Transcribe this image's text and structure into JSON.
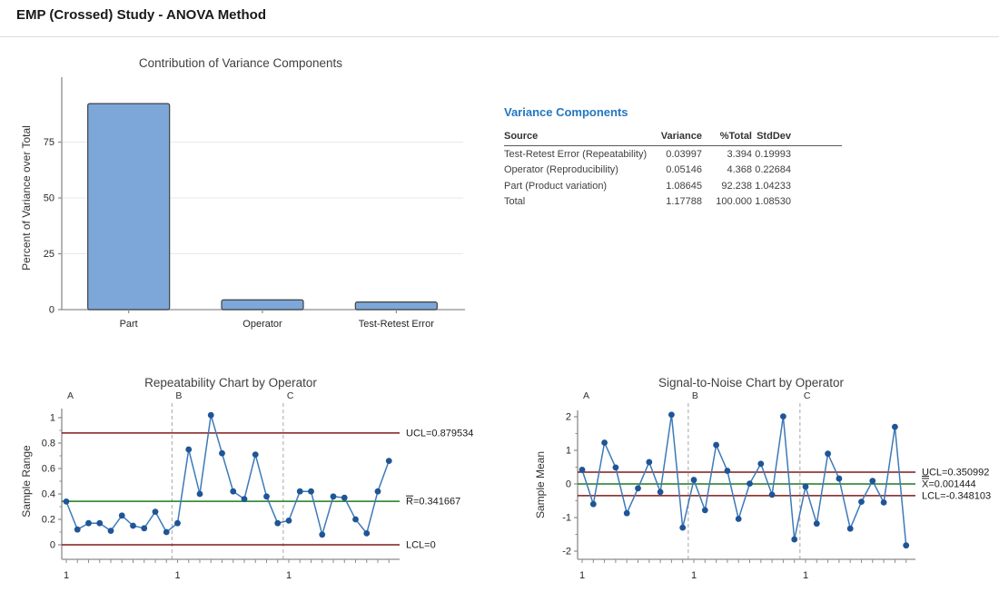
{
  "page": {
    "title": "EMP (Crossed) Study - ANOVA Method"
  },
  "variance_table": {
    "heading": "Variance Components",
    "columns": [
      "Source",
      "Variance",
      "%Total",
      "StdDev"
    ],
    "rows": [
      {
        "source": "Test-Retest Error (Repeatability)",
        "variance": "0.03997",
        "pct_total": "3.394",
        "stddev": "0.19993"
      },
      {
        "source": "Operator (Reproducibility)",
        "variance": "0.05146",
        "pct_total": "4.368",
        "stddev": "0.22684"
      },
      {
        "source": "Part (Product variation)",
        "variance": "1.08645",
        "pct_total": "92.238",
        "stddev": "1.04233"
      },
      {
        "source": "Total",
        "variance": "1.17788",
        "pct_total": "100.000",
        "stddev": "1.08530"
      }
    ]
  },
  "chart_data": [
    {
      "type": "bar",
      "title": "Contribution of Variance Components",
      "xlabel": "",
      "ylabel": "Percent of Variance over Total",
      "categories": [
        "Part",
        "Operator",
        "Test-Retest Error"
      ],
      "values": [
        92.238,
        4.368,
        3.394
      ],
      "yticks": [
        0,
        25,
        50,
        75
      ],
      "ylim": [
        0,
        100
      ],
      "grid": true,
      "legend": "none"
    },
    {
      "type": "line",
      "subtype": "control-chart",
      "title": "Repeatability Chart by Operator",
      "ylabel": "Sample Range",
      "yticks": [
        0,
        0.2,
        0.4,
        0.6,
        0.8,
        1
      ],
      "minor_tick_step": 0.1,
      "x_start_tick_label": "1",
      "groups": [
        {
          "label": "A",
          "values": [
            0.34,
            0.12,
            0.17,
            0.17,
            0.11,
            0.23,
            0.15,
            0.13,
            0.26,
            0.1
          ]
        },
        {
          "label": "B",
          "values": [
            0.17,
            0.75,
            0.4,
            1.02,
            0.72,
            0.42,
            0.36,
            0.71,
            0.38,
            0.17
          ]
        },
        {
          "label": "C",
          "values": [
            0.19,
            0.42,
            0.42,
            0.08,
            0.38,
            0.37,
            0.2,
            0.09,
            0.42,
            0.66
          ]
        }
      ],
      "control_lines": [
        {
          "name": "UCL",
          "label": "UCL=0.879534",
          "value": 0.879534,
          "role": "limit",
          "overline_chars": 0
        },
        {
          "name": "R-bar",
          "label": "R=0.341667",
          "value": 0.341667,
          "role": "center",
          "overline_chars": 1
        },
        {
          "name": "LCL",
          "label": "LCL=0",
          "value": 0,
          "role": "limit",
          "overline_chars": 0
        }
      ]
    },
    {
      "type": "line",
      "subtype": "control-chart",
      "title": "Signal-to-Noise Chart by Operator",
      "ylabel": "Sample Mean",
      "yticks": [
        -2,
        -1,
        0,
        1,
        2
      ],
      "minor_tick_step": 0.5,
      "x_start_tick_label": "1",
      "groups": [
        {
          "label": "A",
          "values": [
            0.42,
            -0.6,
            1.23,
            0.49,
            -0.87,
            -0.13,
            0.65,
            -0.24,
            2.06,
            -1.3
          ]
        },
        {
          "label": "B",
          "values": [
            0.12,
            -0.78,
            1.16,
            0.39,
            -1.04,
            0.01,
            0.6,
            -0.32,
            2.01,
            -1.65
          ]
        },
        {
          "label": "C",
          "values": [
            -0.08,
            -1.18,
            0.9,
            0.16,
            -1.33,
            -0.53,
            0.09,
            -0.55,
            1.7,
            -1.83
          ]
        }
      ],
      "control_lines": [
        {
          "name": "UCL",
          "label": "UCL=0.350992",
          "value": 0.350992,
          "role": "limit",
          "overline_chars": 0
        },
        {
          "name": "X-bar-bar",
          "label": "X=0.001444",
          "value": 0.001444,
          "role": "center",
          "overline_chars": 2
        },
        {
          "name": "LCL",
          "label": "LCL=-0.348103",
          "value": -0.348103,
          "role": "limit",
          "overline_chars": 0
        }
      ]
    }
  ],
  "colors": {
    "heading_blue": "#2577BE",
    "bar_fill": "#7DA7D9",
    "bar_stroke": "#404040",
    "point_blue": "#1F5596",
    "line_blue": "#3D7AB8",
    "limit_maroon": "#7F1A1A",
    "center_green": "#1E7A1E",
    "axis_gray": "#8C8C8C",
    "grid_gray": "#E9E9E9",
    "separator_gray": "#A6A6A6",
    "text_dark": "#262626"
  }
}
